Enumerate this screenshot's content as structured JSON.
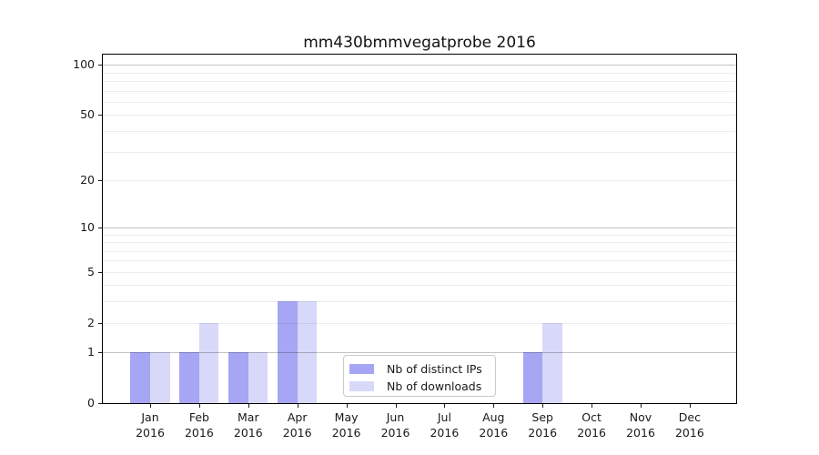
{
  "title": "mm430bmmvegatprobe 2016",
  "colors": {
    "distinct_ips": "#a6a6f4",
    "downloads": "#d8d8f9",
    "axis": "#000000",
    "grid_minor": "#ececec",
    "grid_major": "#c5c5c5",
    "text": "#1a1a1a"
  },
  "legend": {
    "items": [
      {
        "label": "Nb of distinct IPs",
        "color_key": "distinct_ips"
      },
      {
        "label": "Nb of downloads",
        "color_key": "downloads"
      }
    ]
  },
  "y_axis": {
    "tick_values": [
      0,
      1,
      2,
      5,
      10,
      20,
      50,
      100
    ],
    "tick_labels": [
      "0",
      "1",
      "2",
      "5",
      "10",
      "20",
      "50",
      "100"
    ],
    "minor_gridline_values": [
      2,
      3,
      4,
      5,
      6,
      7,
      8,
      9,
      20,
      30,
      40,
      50,
      60,
      70,
      80,
      90
    ],
    "emphasized_gridline_values": [
      1,
      10,
      100
    ]
  },
  "x_axis": {
    "year": "2016",
    "months": [
      "Jan",
      "Feb",
      "Mar",
      "Apr",
      "May",
      "Jun",
      "Jul",
      "Aug",
      "Sep",
      "Oct",
      "Nov",
      "Dec"
    ]
  },
  "chart_data": {
    "type": "bar",
    "title": "mm430bmmvegatprobe 2016",
    "categories": [
      "Jan 2016",
      "Feb 2016",
      "Mar 2016",
      "Apr 2016",
      "May 2016",
      "Jun 2016",
      "Jul 2016",
      "Aug 2016",
      "Sep 2016",
      "Oct 2016",
      "Nov 2016",
      "Dec 2016"
    ],
    "series": [
      {
        "name": "Nb of distinct IPs",
        "color": "#a6a6f4",
        "values": [
          1,
          1,
          1,
          3,
          0,
          0,
          0,
          0,
          1,
          0,
          0,
          0
        ]
      },
      {
        "name": "Nb of downloads",
        "color": "#d8d8f9",
        "values": [
          1,
          2,
          1,
          3,
          0,
          0,
          0,
          0,
          2,
          0,
          0,
          0
        ]
      }
    ],
    "yscale": "log1p",
    "ylim": [
      0,
      113
    ],
    "yticks": [
      0,
      1,
      2,
      5,
      10,
      20,
      50,
      100
    ],
    "grid": true,
    "legend_position": "lower center"
  }
}
